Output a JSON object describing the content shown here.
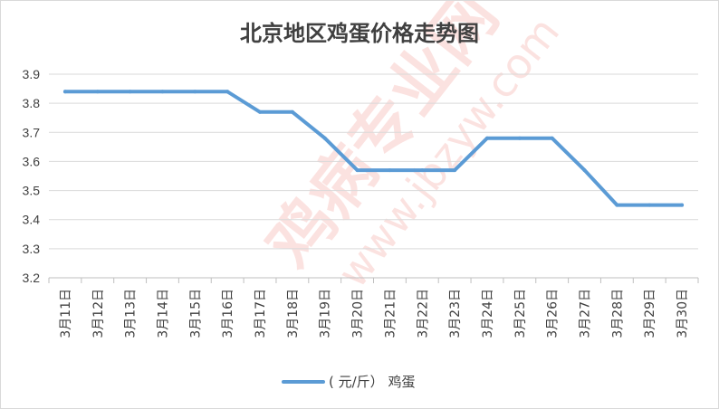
{
  "chart_data": {
    "type": "line",
    "title": "北京地区鸡蛋价格走势图",
    "xlabel": "",
    "ylabel": "",
    "ylim": [
      3.2,
      3.9
    ],
    "yticks": [
      "3.2",
      "3.3",
      "3.4",
      "3.5",
      "3.6",
      "3.7",
      "3.8",
      "3.9"
    ],
    "grid": true,
    "legend": "bottom",
    "categories": [
      "3月11日",
      "3月12日",
      "3月13日",
      "3月14日",
      "3月15日",
      "3月16日",
      "3月17日",
      "3月18日",
      "3月19日",
      "3月20日",
      "3月21日",
      "3月22日",
      "3月23日",
      "3月24日",
      "3月25日",
      "3月26日",
      "3月27日",
      "3月28日",
      "3月29日",
      "3月30日"
    ],
    "series": [
      {
        "name": "( 元/斤） 鸡蛋",
        "color": "#5b9bd5",
        "values": [
          3.84,
          3.84,
          3.84,
          3.84,
          3.84,
          3.84,
          3.77,
          3.77,
          3.68,
          3.57,
          3.57,
          3.57,
          3.57,
          3.68,
          3.68,
          3.68,
          3.57,
          3.45,
          3.45,
          3.45
        ]
      }
    ]
  },
  "colors": {
    "series": "#5b9bd5",
    "grid": "#d9d9d9",
    "text": "#404040",
    "watermark": "#e8291c"
  },
  "watermark": {
    "main": "鸡病专业网",
    "url": "www.jbzyw.com"
  }
}
